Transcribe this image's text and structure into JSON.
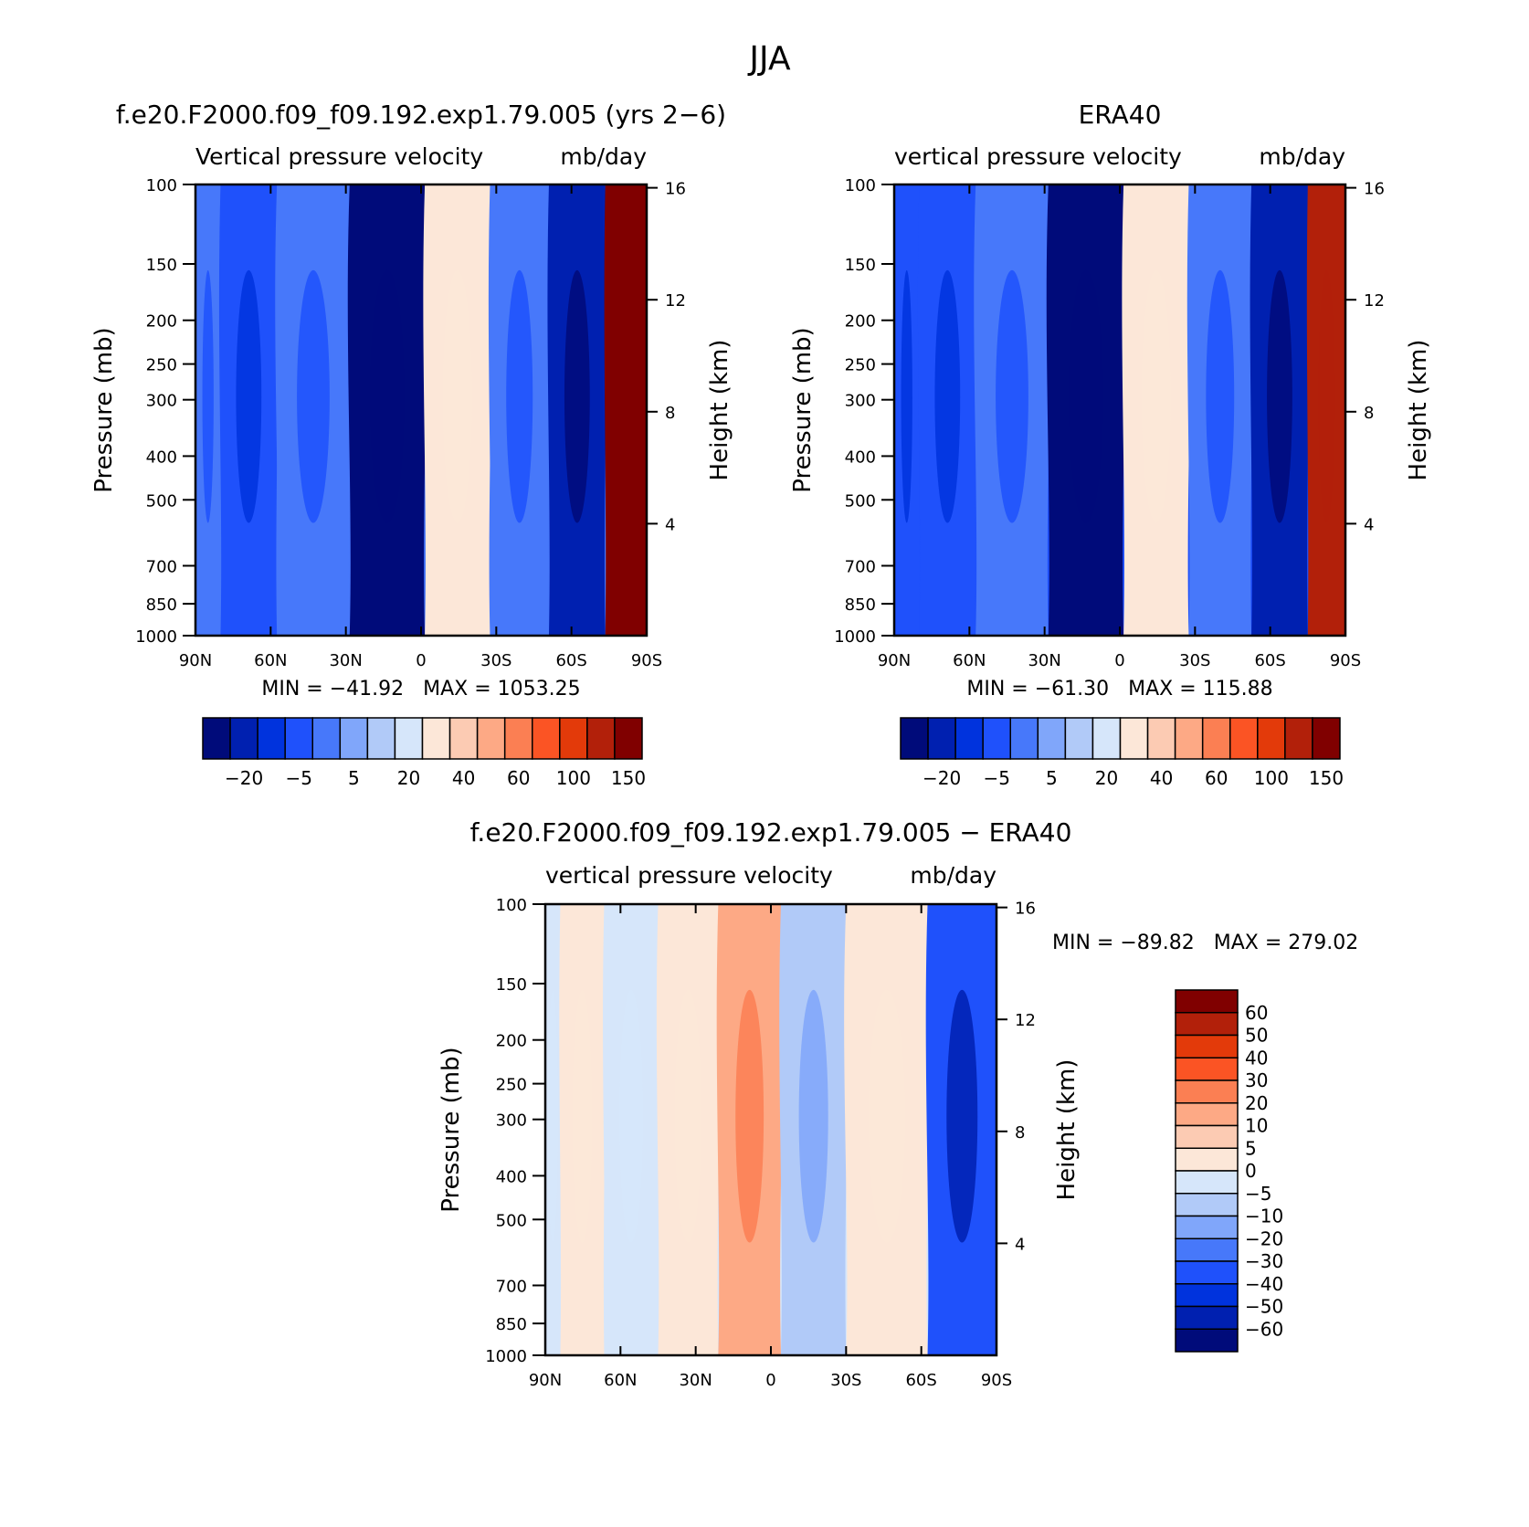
{
  "title": "JJA",
  "colors": {
    "level_fills": [
      "#000b7a",
      "#0020b0",
      "#0033dd",
      "#1f51fb",
      "#4778fa",
      "#80a6fa",
      "#b1caf8",
      "#d6e6fa",
      "#fce7d8",
      "#fccbb3",
      "#fda985",
      "#fb7f53",
      "#fb5424",
      "#e33a0a",
      "#b2200a",
      "#800000"
    ]
  },
  "chart_data": [
    {
      "type": "contour",
      "panel_title": "f.e20.F2000.f09_f09.192.exp1.79.005 (yrs 2−6)",
      "subtitle_left": "Vertical pressure velocity",
      "subtitle_right": "mb/day",
      "xlabel": "",
      "ylabel": "Pressure (mb)",
      "y2label": "Height (km)",
      "x_ticks": [
        "90N",
        "60N",
        "30N",
        "0",
        "30S",
        "60S",
        "90S"
      ],
      "x_values": [
        90,
        60,
        30,
        0,
        -30,
        -60,
        -90
      ],
      "y_ticks": [
        100,
        150,
        200,
        250,
        300,
        400,
        500,
        700,
        850,
        1000
      ],
      "y_log": true,
      "ylim": [
        1000,
        100
      ],
      "y2_ticks": [
        16,
        12,
        8,
        4
      ],
      "min_label": "MIN = −41.92",
      "max_label": "MAX = 1053.25",
      "colorbar": {
        "orientation": "horizontal",
        "levels": [
          "−20",
          "−5",
          "5",
          "20",
          "40",
          "60",
          "100",
          "150"
        ]
      },
      "bands": [
        {
          "lat": 90,
          "value": -5
        },
        {
          "lat": 70,
          "value": -10
        },
        {
          "lat": 45,
          "value": -5
        },
        {
          "lat": 12,
          "value": -40
        },
        {
          "lat": -15,
          "value": 20
        },
        {
          "lat": -40,
          "value": -5
        },
        {
          "lat": -62,
          "value": -30
        },
        {
          "lat": -85,
          "value": 150
        }
      ],
      "stats": {
        "min": -41.92,
        "max": 1053.25
      }
    },
    {
      "type": "contour",
      "panel_title": "ERA40",
      "subtitle_left": "vertical pressure velocity",
      "subtitle_right": "mb/day",
      "xlabel": "",
      "ylabel": "Pressure (mb)",
      "y2label": "Height (km)",
      "x_ticks": [
        "90N",
        "60N",
        "30N",
        "0",
        "30S",
        "60S",
        "90S"
      ],
      "x_values": [
        90,
        60,
        30,
        0,
        -30,
        -60,
        -90
      ],
      "y_ticks": [
        100,
        150,
        200,
        250,
        300,
        400,
        500,
        700,
        850,
        1000
      ],
      "y_log": true,
      "ylim": [
        1000,
        100
      ],
      "y2_ticks": [
        16,
        12,
        8,
        4
      ],
      "min_label": "MIN = −61.30",
      "max_label": "MAX = 115.88",
      "colorbar": {
        "orientation": "horizontal",
        "levels": [
          "−20",
          "−5",
          "5",
          "20",
          "40",
          "60",
          "100",
          "150"
        ]
      },
      "bands": [
        {
          "lat": 90,
          "value": -10
        },
        {
          "lat": 70,
          "value": -10
        },
        {
          "lat": 45,
          "value": -5
        },
        {
          "lat": 12,
          "value": -60
        },
        {
          "lat": -15,
          "value": 20
        },
        {
          "lat": -40,
          "value": -5
        },
        {
          "lat": -65,
          "value": -30
        },
        {
          "lat": -85,
          "value": 100
        }
      ],
      "stats": {
        "min": -61.3,
        "max": 115.88
      }
    },
    {
      "type": "contour",
      "panel_title": "f.e20.F2000.f09_f09.192.exp1.79.005 − ERA40",
      "subtitle_left": "vertical pressure velocity",
      "subtitle_right": "mb/day",
      "xlabel": "",
      "ylabel": "Pressure (mb)",
      "y2label": "Height (km)",
      "x_ticks": [
        "90N",
        "60N",
        "30N",
        "0",
        "30S",
        "60S",
        "90S"
      ],
      "x_values": [
        90,
        60,
        30,
        0,
        -30,
        -60,
        -90
      ],
      "y_ticks": [
        100,
        150,
        200,
        250,
        300,
        400,
        500,
        700,
        850,
        1000
      ],
      "y_log": true,
      "ylim": [
        1000,
        100
      ],
      "y2_ticks": [
        16,
        12,
        8,
        4
      ],
      "min_label": "MIN = −89.82",
      "max_label": "MAX = 279.02",
      "colorbar": {
        "orientation": "vertical",
        "levels": [
          "60",
          "50",
          "40",
          "30",
          "20",
          "10",
          "5",
          "0",
          "−5",
          "−10",
          "−20",
          "−30",
          "−40",
          "−50",
          "−60"
        ]
      },
      "bands": [
        {
          "lat": 90,
          "value": -3
        },
        {
          "lat": 78,
          "value": 2
        },
        {
          "lat": 55,
          "value": -3
        },
        {
          "lat": 35,
          "value": 2
        },
        {
          "lat": 7,
          "value": 15
        },
        {
          "lat": -15,
          "value": -8
        },
        {
          "lat": -45,
          "value": 2
        },
        {
          "lat": -80,
          "value": -40
        }
      ],
      "stats": {
        "min": -89.82,
        "max": 279.02
      }
    }
  ]
}
